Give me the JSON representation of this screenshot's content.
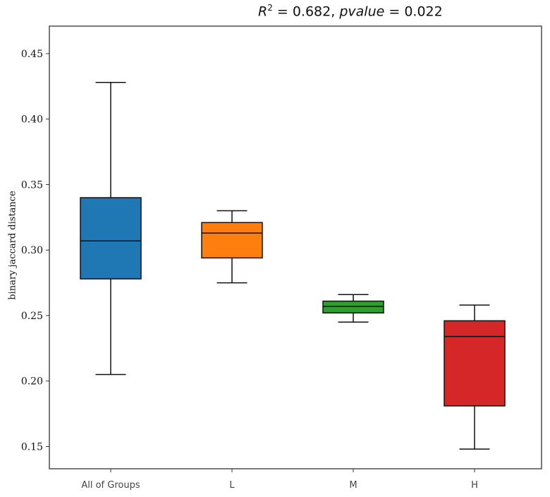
{
  "chart_data": {
    "type": "box",
    "title": {
      "r_symbol": "R",
      "r_exp": "2",
      "r_sep": " = ",
      "r_value": "0.682",
      "comma": ", ",
      "p_symbol": "pvalue",
      "p_sep": " = ",
      "p_value": "0.022"
    },
    "xlabel": "",
    "ylabel": "binary jaccard distance",
    "ylim": [
      0.133,
      0.471
    ],
    "yticks": [
      "0.15",
      "0.20",
      "0.25",
      "0.30",
      "0.35",
      "0.40",
      "0.45"
    ],
    "grid": false,
    "categories": [
      "All of Groups",
      "L",
      "M",
      "H"
    ],
    "boxes": [
      {
        "name": "All of Groups",
        "color": "#1f77b4",
        "whisker_low": 0.205,
        "q1": 0.278,
        "median": 0.307,
        "q3": 0.34,
        "whisker_high": 0.428
      },
      {
        "name": "L",
        "color": "#ff7f0e",
        "whisker_low": 0.275,
        "q1": 0.294,
        "median": 0.313,
        "q3": 0.321,
        "whisker_high": 0.33
      },
      {
        "name": "M",
        "color": "#2ca02c",
        "whisker_low": 0.245,
        "q1": 0.252,
        "median": 0.257,
        "q3": 0.261,
        "whisker_high": 0.266
      },
      {
        "name": "H",
        "color": "#d62728",
        "whisker_low": 0.148,
        "q1": 0.181,
        "median": 0.234,
        "q3": 0.246,
        "whisker_high": 0.258
      }
    ]
  }
}
